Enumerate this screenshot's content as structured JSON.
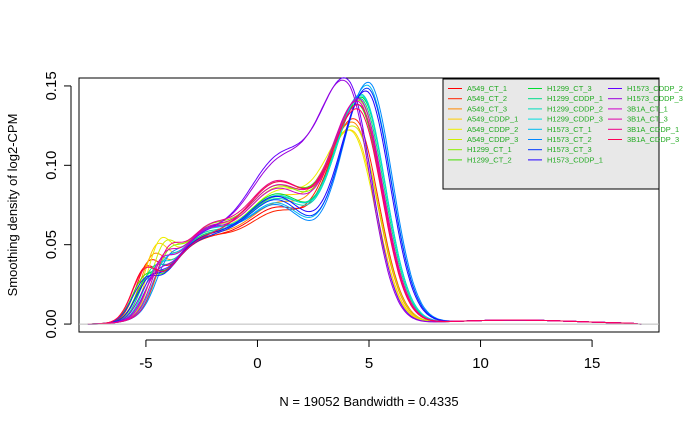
{
  "chart_data": {
    "type": "line",
    "title": "",
    "xlabel": "N = 19052   Bandwidth = 0.4335",
    "ylabel": "Smoothing density of log2-CPM",
    "xlim": [
      -8,
      18
    ],
    "ylim": [
      -0.005,
      0.155
    ],
    "x_ticks": [
      -5,
      0,
      5,
      10,
      15
    ],
    "y_ticks": [
      0.0,
      0.05,
      0.1,
      0.15
    ],
    "x_tick_labels": [
      "-5",
      "0",
      "5",
      "10",
      "15"
    ],
    "y_tick_labels": [
      "0.00",
      "0.05",
      "0.10",
      "0.15"
    ],
    "grid": false,
    "baseline": 0,
    "legend_position": "top-right",
    "legend_text_color": "#22aa22",
    "legend_background": "#e8e8e8",
    "legend_columns": 3,
    "series": [
      {
        "name": "A549_CT_1",
        "color": "#ff0000",
        "peak": 0.134,
        "mode": 4.55,
        "shoulder": 0.066,
        "bump": 0.026
      },
      {
        "name": "A549_CT_2",
        "color": "#ff2200",
        "peak": 0.124,
        "mode": 4.4,
        "shoulder": 0.063,
        "bump": 0.028
      },
      {
        "name": "A549_CT_3",
        "color": "#ff8800",
        "peak": 0.121,
        "mode": 4.35,
        "shoulder": 0.068,
        "bump": 0.03
      },
      {
        "name": "A549_CDDP_1",
        "color": "#ffcc00",
        "peak": 0.115,
        "mode": 4.3,
        "shoulder": 0.072,
        "bump": 0.034
      },
      {
        "name": "A549_CDDP_2",
        "color": "#eeee00",
        "peak": 0.114,
        "mode": 4.25,
        "shoulder": 0.075,
        "bump": 0.035
      },
      {
        "name": "A549_CDDP_3",
        "color": "#ccee00",
        "peak": 0.118,
        "mode": 4.4,
        "shoulder": 0.078,
        "bump": 0.03
      },
      {
        "name": "H1299_CT_1",
        "color": "#88ee00",
        "peak": 0.136,
        "mode": 4.6,
        "shoulder": 0.08,
        "bump": 0.022
      },
      {
        "name": "H1299_CT_2",
        "color": "#44dd00",
        "peak": 0.133,
        "mode": 4.55,
        "shoulder": 0.082,
        "bump": 0.021
      },
      {
        "name": "H1299_CT_3",
        "color": "#00dd33",
        "peak": 0.139,
        "mode": 4.7,
        "shoulder": 0.075,
        "bump": 0.02
      },
      {
        "name": "H1299_CDDP_1",
        "color": "#00dd88",
        "peak": 0.138,
        "mode": 4.65,
        "shoulder": 0.073,
        "bump": 0.022
      },
      {
        "name": "H1299_CDDP_2",
        "color": "#00ddbb",
        "peak": 0.141,
        "mode": 4.7,
        "shoulder": 0.072,
        "bump": 0.021
      },
      {
        "name": "H1299_CDDP_3",
        "color": "#00dddd",
        "peak": 0.14,
        "mode": 4.7,
        "shoulder": 0.074,
        "bump": 0.022
      },
      {
        "name": "H1573_CT_1",
        "color": "#00bbee",
        "peak": 0.148,
        "mode": 4.95,
        "shoulder": 0.07,
        "bump": 0.019
      },
      {
        "name": "H1573_CT_2",
        "color": "#0088ff",
        "peak": 0.15,
        "mode": 5.0,
        "shoulder": 0.069,
        "bump": 0.018
      },
      {
        "name": "H1573_CT_3",
        "color": "#0033ff",
        "peak": 0.146,
        "mode": 4.95,
        "shoulder": 0.072,
        "bump": 0.019
      },
      {
        "name": "H1573_CDDP_1",
        "color": "#2200ff",
        "peak": 0.144,
        "mode": 4.9,
        "shoulder": 0.074,
        "bump": 0.018
      },
      {
        "name": "H1573_CDDP_2",
        "color": "#6600ff",
        "peak": 0.142,
        "mode": 4.1,
        "shoulder": 0.095,
        "bump": 0.017
      },
      {
        "name": "H1573_CDDP_3",
        "color": "#9900dd",
        "peak": 0.14,
        "mode": 4.05,
        "shoulder": 0.092,
        "bump": 0.017
      },
      {
        "name": "3B1A_CT_1",
        "color": "#cc00cc",
        "peak": 0.137,
        "mode": 4.6,
        "shoulder": 0.078,
        "bump": 0.022
      },
      {
        "name": "3B1A_CT_3",
        "color": "#dd00aa",
        "peak": 0.135,
        "mode": 4.55,
        "shoulder": 0.08,
        "bump": 0.023
      },
      {
        "name": "3B1A_CDDP_1",
        "color": "#ee0088",
        "peak": 0.133,
        "mode": 4.6,
        "shoulder": 0.083,
        "bump": 0.024
      },
      {
        "name": "3B1A_CDDP_3",
        "color": "#ff0055",
        "peak": 0.13,
        "mode": 4.55,
        "shoulder": 0.082,
        "bump": 0.025
      }
    ]
  }
}
